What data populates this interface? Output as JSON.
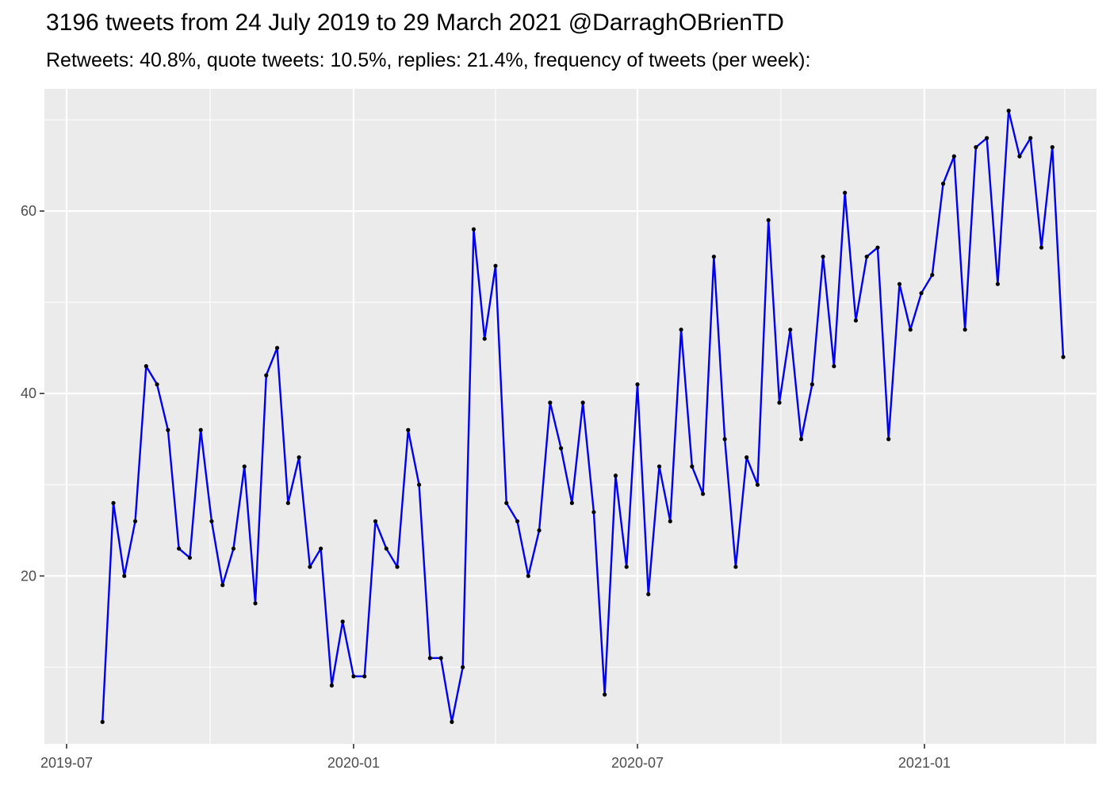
{
  "chart_data": {
    "type": "line",
    "title": "3196 tweets from 24 July 2019 to 29 March 2021 @DarraghOBrienTD",
    "subtitle": "Retweets: 40.8%, quote tweets: 10.5%, replies: 21.4%, frequency of tweets (per week):",
    "xlabel": "",
    "ylabel": "",
    "x_range": [
      "2019-07-01",
      "2021-04-01"
    ],
    "ylim": [
      1.6,
      73.4
    ],
    "y_ticks": [
      20,
      40,
      60
    ],
    "y_minor_ticks": [
      10,
      30,
      50,
      70
    ],
    "x_ticks": [
      {
        "date": "2019-07-01",
        "label": "2019-07"
      },
      {
        "date": "2020-01-01",
        "label": "2020-01"
      },
      {
        "date": "2020-07-01",
        "label": "2020-07"
      },
      {
        "date": "2021-01-01",
        "label": "2021-01"
      }
    ],
    "x_minor_ticks": [
      "2019-10-01",
      "2020-04-01",
      "2020-10-01",
      "2021-04-01"
    ],
    "grid": true,
    "series": [
      {
        "color": "#0000ee",
        "point_color": "#000000",
        "start_date": "2019-07-24",
        "step_days": 7,
        "values": [
          4,
          28,
          20,
          26,
          43,
          41,
          36,
          23,
          22,
          36,
          26,
          19,
          23,
          32,
          17,
          42,
          45,
          28,
          33,
          21,
          23,
          8,
          15,
          9,
          9,
          26,
          23,
          21,
          36,
          30,
          11,
          11,
          4,
          10,
          58,
          46,
          54,
          28,
          26,
          20,
          25,
          39,
          34,
          28,
          39,
          27,
          7,
          31,
          21,
          41,
          18,
          32,
          26,
          47,
          32,
          29,
          55,
          35,
          21,
          33,
          30,
          59,
          39,
          47,
          35,
          41,
          55,
          43,
          62,
          48,
          55,
          56,
          35,
          52,
          47,
          51,
          53,
          63,
          66,
          47,
          67,
          68,
          52,
          71,
          66,
          68,
          56,
          67,
          44
        ]
      }
    ]
  }
}
